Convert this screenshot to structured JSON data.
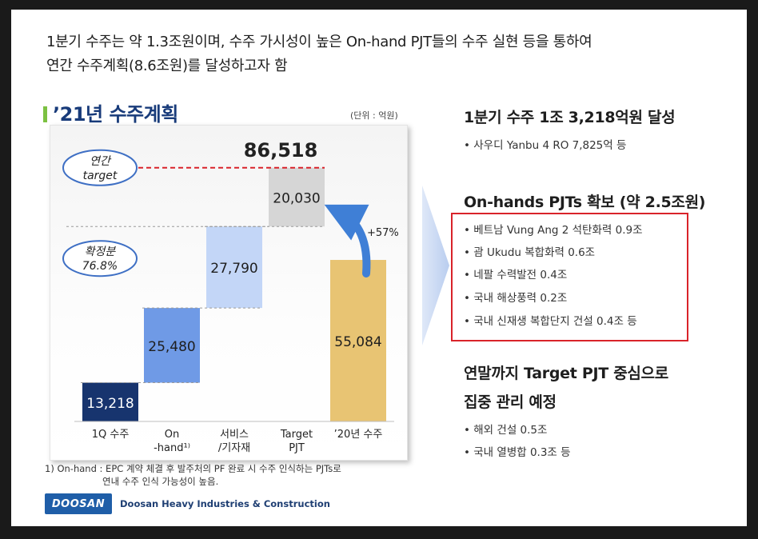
{
  "headline": {
    "line1": "1분기 수주는 약 1.3조원이며, 수주 가시성이 높은 On-hand PJT들의 수주 실현 등을 통하여",
    "line2": "연간 수주계획(8.6조원)를 달성하고자 함"
  },
  "section": {
    "title": "’21년 수주계획",
    "unit": "(단위 : 억원)"
  },
  "chart_data": {
    "type": "bar",
    "subtype": "waterfall",
    "categories": [
      [
        "1Q 수주"
      ],
      [
        "On",
        "-hand¹⁾"
      ],
      [
        "서비스",
        "/기자재"
      ],
      [
        "Target",
        "PJT"
      ],
      [
        "’20년 수주"
      ]
    ],
    "waterfall": [
      {
        "value": 13218,
        "label": "13,218",
        "color": "#17346e",
        "text_color": "#ffffff"
      },
      {
        "value": 25480,
        "label": "25,480",
        "color": "#6f9ae6",
        "text_color": "#1e1e1e"
      },
      {
        "value": 27790,
        "label": "27,790",
        "color": "#c3d6f7",
        "text_color": "#1e1e1e"
      },
      {
        "value": 20030,
        "label": "20,030",
        "color": "#d6d6d6",
        "text_color": "#1e1e1e"
      }
    ],
    "comparison": {
      "value": 55084,
      "label": "55,084",
      "color": "#e8c473",
      "text_color": "#1e1e1e"
    },
    "total": {
      "value": 86518,
      "label": "86,518"
    },
    "growth_label": "+57%",
    "annual_target_label": [
      "연간",
      "target"
    ],
    "confirmed_label": [
      "확정분",
      "76.8%"
    ],
    "ylim": [
      0,
      90000
    ]
  },
  "footnote": {
    "line1": "1) On-hand : EPC 계약 체결 후 발주처의 PF 완료 시 수주 인식하는 PJTs로",
    "line2": "연내 수주 인식 가능성이 높음."
  },
  "logo": {
    "mark": "DOOSAN",
    "company": "Doosan Heavy Industries & Construction"
  },
  "right": {
    "h1": "1분기 수주 1조 3,218억원 달성",
    "b1": "사우디 Yanbu 4 RO  7,825억 등",
    "h2": "On-hands PJTs 확보 (약 2.5조원)",
    "onhand_items": [
      "베트남 Vung Ang 2 석탄화력 0.9조",
      "괌 Ukudu 복합화력 0.6조",
      "네팔 수력발전 0.4조",
      "국내 해상풍력 0.2조",
      "국내 신재생 복합단지 건설 0.4조 등"
    ],
    "h3_line1": "연말까지 Target PJT 중심으로",
    "h3_line2": "집중 관리 예정",
    "target_items": [
      "해외 건설 0.5조",
      "국내 열병합 0.3조 등"
    ]
  },
  "colors": {
    "accent_green": "#7cc142",
    "title_navy": "#183b7a",
    "highlight_red": "#d9232a",
    "dashed_red": "#d9232a",
    "growth_arrow": "#3f7fd6"
  }
}
